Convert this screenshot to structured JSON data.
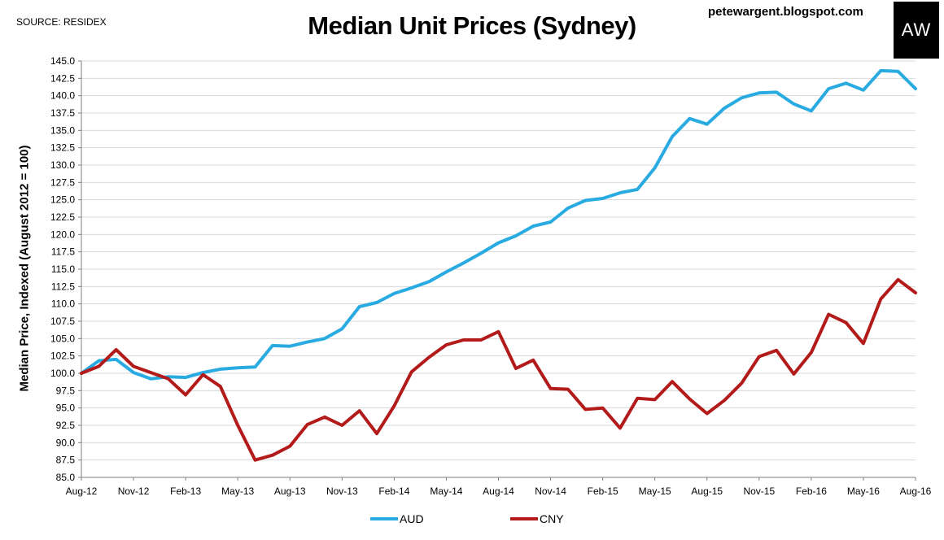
{
  "header": {
    "source": "SOURCE: RESIDEX",
    "site": "petewargent.blogspot.com",
    "logo_text": "AW"
  },
  "chart_data": {
    "type": "line",
    "title": "Median Unit Prices (Sydney)",
    "xlabel": "",
    "ylabel": "Median Price, Indexed (August 2012 = 100)",
    "ylim": [
      85,
      145
    ],
    "y_ticks": [
      "85.0",
      "87.5",
      "90.0",
      "92.5",
      "95.0",
      "97.5",
      "100.0",
      "102.5",
      "105.0",
      "107.5",
      "110.0",
      "112.5",
      "115.0",
      "117.5",
      "120.0",
      "122.5",
      "125.0",
      "127.5",
      "130.0",
      "132.5",
      "135.0",
      "137.5",
      "140.0",
      "142.5",
      "145.0"
    ],
    "x_tick_labels": [
      "Aug-12",
      "Nov-12",
      "Feb-13",
      "May-13",
      "Aug-13",
      "Nov-13",
      "Feb-14",
      "May-14",
      "Aug-14",
      "Nov-14",
      "Feb-15",
      "May-15",
      "Aug-15",
      "Nov-15",
      "Feb-16",
      "May-16",
      "Aug-16"
    ],
    "x": [
      "Aug-12",
      "Sep-12",
      "Oct-12",
      "Nov-12",
      "Dec-12",
      "Jan-13",
      "Feb-13",
      "Mar-13",
      "Apr-13",
      "May-13",
      "Jun-13",
      "Jul-13",
      "Aug-13",
      "Sep-13",
      "Oct-13",
      "Nov-13",
      "Dec-13",
      "Jan-14",
      "Feb-14",
      "Mar-14",
      "Apr-14",
      "May-14",
      "Jun-14",
      "Jul-14",
      "Aug-14",
      "Sep-14",
      "Oct-14",
      "Nov-14",
      "Dec-14",
      "Jan-15",
      "Feb-15",
      "Mar-15",
      "Apr-15",
      "May-15",
      "Jun-15",
      "Jul-15",
      "Aug-15",
      "Sep-15",
      "Oct-15",
      "Nov-15",
      "Dec-15",
      "Jan-16",
      "Feb-16",
      "Mar-16",
      "Apr-16",
      "May-16",
      "Jun-16",
      "Jul-16",
      "Aug-16"
    ],
    "series": [
      {
        "name": "AUD",
        "color": "#29ABE2",
        "values": [
          100.0,
          101.8,
          102.0,
          100.1,
          99.2,
          99.5,
          99.4,
          100.1,
          100.6,
          100.8,
          100.9,
          104.0,
          103.9,
          104.5,
          105.0,
          106.4,
          109.6,
          110.2,
          111.5,
          112.3,
          113.2,
          114.6,
          115.9,
          117.3,
          118.8,
          119.8,
          121.2,
          121.8,
          123.8,
          124.9,
          125.2,
          126.0,
          126.5,
          129.6,
          134.1,
          136.7,
          135.9,
          138.2,
          139.7,
          140.4,
          140.5,
          138.8,
          137.8,
          141.0,
          141.8,
          140.8,
          143.6,
          143.5,
          141.0
        ]
      },
      {
        "name": "CNY",
        "color": "#B31B1B",
        "values": [
          100.0,
          101.0,
          103.4,
          101.0,
          100.1,
          99.2,
          96.9,
          99.8,
          98.1,
          92.5,
          87.5,
          88.2,
          89.5,
          92.6,
          93.7,
          92.5,
          94.6,
          91.3,
          95.3,
          100.2,
          102.3,
          104.1,
          104.8,
          104.8,
          106.0,
          100.7,
          101.9,
          97.8,
          97.7,
          94.8,
          95.0,
          92.1,
          96.4,
          96.2,
          98.8,
          96.3,
          94.2,
          96.1,
          98.6,
          102.4,
          103.3,
          99.9,
          103.0,
          108.5,
          107.3,
          104.3,
          110.7,
          113.5,
          111.6
        ]
      }
    ],
    "legend_position": "bottom",
    "grid": "horizontal"
  }
}
